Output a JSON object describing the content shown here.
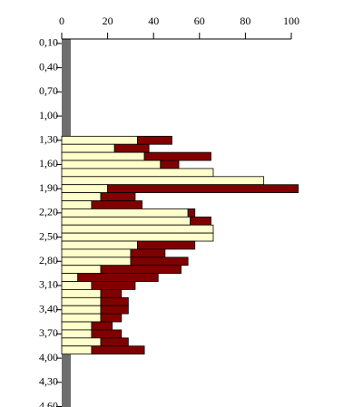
{
  "chart_data": {
    "type": "stacked-barh",
    "depths": [
      1.3,
      1.4,
      1.5,
      1.6,
      1.7,
      1.8,
      1.9,
      2.0,
      2.1,
      2.2,
      2.3,
      2.4,
      2.5,
      2.6,
      2.7,
      2.8,
      2.9,
      3.0,
      3.1,
      3.2,
      3.3,
      3.4,
      3.5,
      3.6,
      3.7,
      3.8,
      3.9
    ],
    "series": [
      {
        "color": "#ffffcc",
        "values": [
          33,
          23,
          36,
          43,
          66,
          88,
          20,
          17,
          13,
          55,
          56,
          66,
          66,
          33,
          30,
          30,
          17,
          7,
          13,
          17,
          17,
          17,
          17,
          13,
          13,
          17,
          13
        ]
      },
      {
        "color": "#800000",
        "values": [
          15,
          15,
          29,
          8,
          0,
          0,
          83,
          15,
          22,
          3,
          9,
          0,
          0,
          25,
          15,
          25,
          35,
          35,
          19,
          9,
          12,
          12,
          9,
          9,
          13,
          12,
          23
        ]
      }
    ],
    "xlim": [
      0,
      100
    ],
    "xticks": [
      0,
      20,
      40,
      60,
      80,
      100
    ],
    "ylim": [
      0.05,
      4.6
    ],
    "yticks": [
      {
        "value": 0.1,
        "label": "0,10"
      },
      {
        "value": 0.4,
        "label": "0,40"
      },
      {
        "value": 0.7,
        "label": "0,70"
      },
      {
        "value": 1.0,
        "label": "1,00"
      },
      {
        "value": 1.3,
        "label": "1,30"
      },
      {
        "value": 1.6,
        "label": "1,60"
      },
      {
        "value": 1.9,
        "label": "1,90"
      },
      {
        "value": 2.2,
        "label": "2,20"
      },
      {
        "value": 2.5,
        "label": "2,50"
      },
      {
        "value": 2.8,
        "label": "2,80"
      },
      {
        "value": 3.1,
        "label": "3,10"
      },
      {
        "value": 3.4,
        "label": "3,40"
      },
      {
        "value": 3.7,
        "label": "3,70"
      },
      {
        "value": 4.0,
        "label": "4,00"
      },
      {
        "value": 4.3,
        "label": "4,30"
      },
      {
        "value": 4.6,
        "label": "4,60"
      }
    ]
  }
}
